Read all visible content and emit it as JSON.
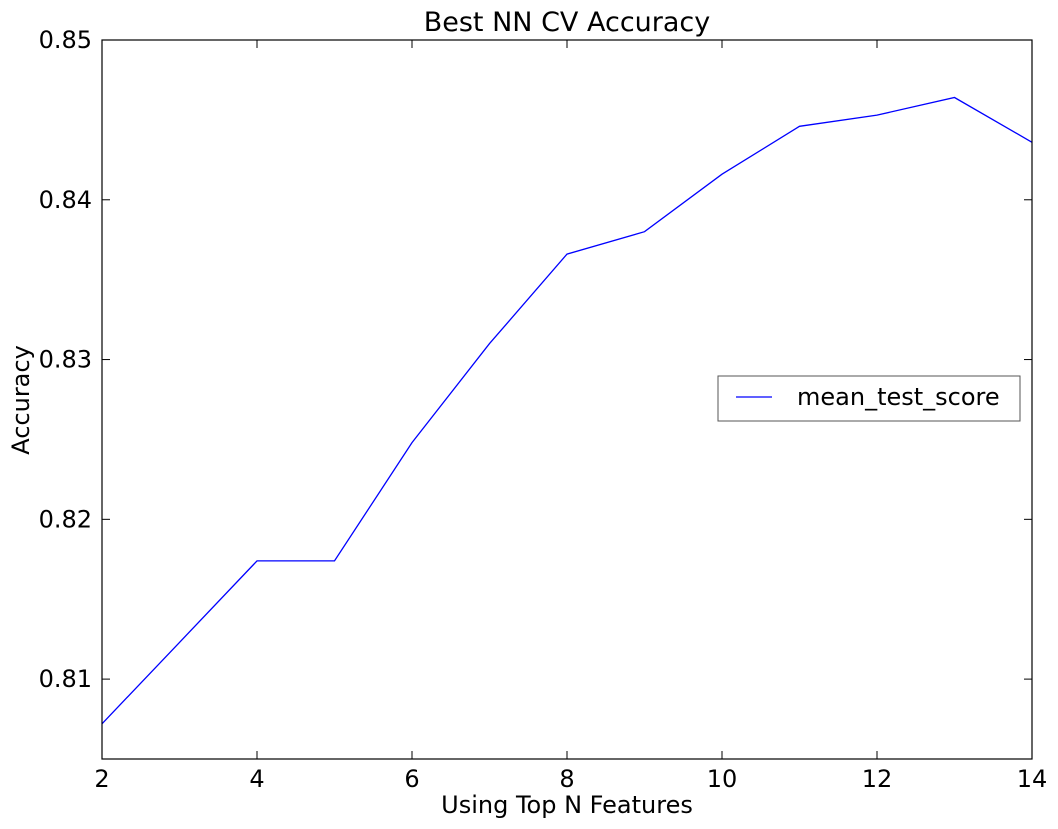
{
  "chart_data": {
    "type": "line",
    "title": "Best NN CV Accuracy",
    "xlabel": "Using Top N Features",
    "ylabel": "Accuracy",
    "xlim": [
      2,
      14
    ],
    "ylim": [
      0.805,
      0.85
    ],
    "xticks": [
      2,
      4,
      6,
      8,
      10,
      12,
      14
    ],
    "xtick_labels": [
      "2",
      "4",
      "6",
      "8",
      "10",
      "12",
      "14"
    ],
    "yticks": [
      0.81,
      0.82,
      0.83,
      0.84,
      0.85
    ],
    "ytick_labels": [
      "0.81",
      "0.82",
      "0.83",
      "0.84",
      "0.85"
    ],
    "grid": false,
    "legend_position": "center-right",
    "series": [
      {
        "name": "mean_test_score",
        "color": "#0000ff",
        "x": [
          2,
          3,
          4,
          5,
          6,
          7,
          8,
          9,
          10,
          11,
          12,
          13,
          14
        ],
        "y": [
          0.8072,
          0.8123,
          0.8174,
          0.8174,
          0.8248,
          0.831,
          0.8366,
          0.838,
          0.8416,
          0.8446,
          0.8453,
          0.8464,
          0.8436
        ]
      }
    ]
  }
}
